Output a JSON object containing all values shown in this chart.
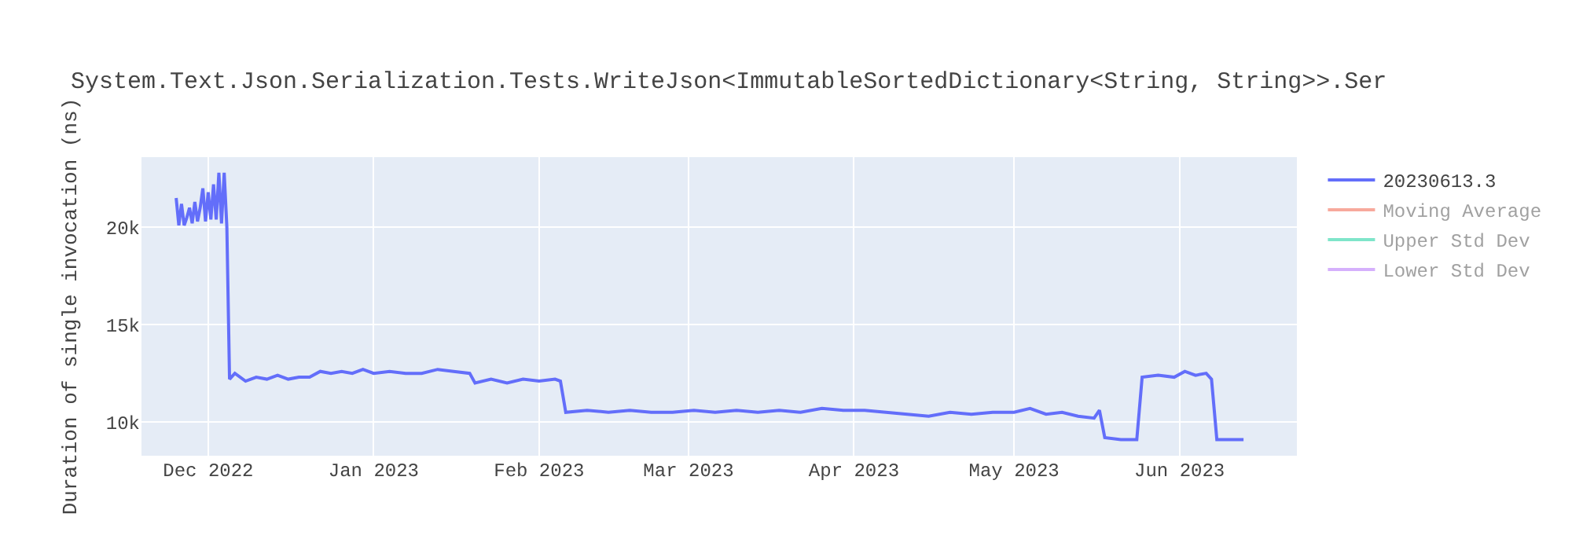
{
  "chart_data": {
    "type": "line",
    "title": "System.Text.Json.Serialization.Tests.WriteJson<ImmutableSortedDictionary<String, String>>.Ser",
    "ylabel": "Duration of single invocation (ns)",
    "x": [
      "2022-11-25",
      "2022-11-25T12:00",
      "2022-11-26",
      "2022-11-26T12:00",
      "2022-11-27",
      "2022-11-27T12:00",
      "2022-11-28",
      "2022-11-28T12:00",
      "2022-11-29",
      "2022-11-29T12:00",
      "2022-11-30",
      "2022-11-30T12:00",
      "2022-12-01",
      "2022-12-01T12:00",
      "2022-12-02",
      "2022-12-02T12:00",
      "2022-12-03",
      "2022-12-03T12:00",
      "2022-12-04",
      "2022-12-04T12:00",
      "2022-12-05",
      "2022-12-06",
      "2022-12-08",
      "2022-12-10",
      "2022-12-12",
      "2022-12-14",
      "2022-12-16",
      "2022-12-18",
      "2022-12-20",
      "2022-12-22",
      "2022-12-24",
      "2022-12-26",
      "2022-12-28",
      "2022-12-30",
      "2023-01-01",
      "2023-01-04",
      "2023-01-07",
      "2023-01-10",
      "2023-01-13",
      "2023-01-16",
      "2023-01-19",
      "2023-01-20",
      "2023-01-23",
      "2023-01-26",
      "2023-01-29",
      "2023-02-01",
      "2023-02-04",
      "2023-02-05",
      "2023-02-06",
      "2023-02-10",
      "2023-02-14",
      "2023-02-18",
      "2023-02-22",
      "2023-02-26",
      "2023-03-02",
      "2023-03-06",
      "2023-03-10",
      "2023-03-14",
      "2023-03-18",
      "2023-03-22",
      "2023-03-26",
      "2023-03-30",
      "2023-04-03",
      "2023-04-07",
      "2023-04-11",
      "2023-04-15",
      "2023-04-19",
      "2023-04-23",
      "2023-04-27",
      "2023-05-01",
      "2023-05-04",
      "2023-05-07",
      "2023-05-10",
      "2023-05-13",
      "2023-05-16",
      "2023-05-17",
      "2023-05-18",
      "2023-05-21",
      "2023-05-24",
      "2023-05-25",
      "2023-05-28",
      "2023-05-31",
      "2023-06-02",
      "2023-06-04",
      "2023-06-06",
      "2023-06-07",
      "2023-06-08",
      "2023-06-10",
      "2023-06-13"
    ],
    "series": [
      {
        "name": "20230613.3",
        "color": "#636efa",
        "values": [
          21500,
          20100,
          21200,
          20100,
          20500,
          21000,
          20200,
          21300,
          20300,
          21000,
          22000,
          20300,
          21800,
          20400,
          22200,
          20400,
          22800,
          20200,
          22800,
          20000,
          12200,
          12500,
          12100,
          12300,
          12200,
          12400,
          12200,
          12300,
          12300,
          12600,
          12500,
          12600,
          12500,
          12700,
          12500,
          12600,
          12500,
          12500,
          12700,
          12600,
          12500,
          12000,
          12200,
          12000,
          12200,
          12100,
          12200,
          12100,
          10500,
          10600,
          10500,
          10600,
          10500,
          10500,
          10600,
          10500,
          10600,
          10500,
          10600,
          10500,
          10700,
          10600,
          10600,
          10500,
          10400,
          10300,
          10500,
          10400,
          10500,
          10500,
          10700,
          10400,
          10500,
          10300,
          10200,
          10600,
          9200,
          9100,
          9100,
          12300,
          12400,
          12300,
          12600,
          12400,
          12500,
          12200,
          9100,
          9100,
          9100
        ]
      },
      {
        "name": "Moving Average",
        "color": "#ef553b",
        "values": [
          null,
          null,
          null,
          null,
          null,
          null,
          null,
          null,
          null,
          null,
          null,
          null,
          null,
          null,
          null,
          null,
          null,
          null,
          null,
          null,
          null,
          null,
          null,
          null,
          null,
          null,
          null,
          null,
          null,
          null,
          null,
          null,
          null,
          null,
          null,
          null,
          null,
          null,
          null,
          null,
          null,
          null,
          null,
          null,
          null,
          null,
          null,
          null,
          null,
          null,
          null,
          null,
          null,
          null,
          null,
          null,
          null,
          null,
          null,
          null,
          null,
          null,
          null,
          null,
          null,
          null,
          null,
          null,
          null,
          null,
          null,
          null,
          null,
          null,
          null,
          null,
          null,
          null,
          null,
          null,
          null,
          null,
          null,
          null,
          null,
          null,
          null,
          null,
          null
        ]
      },
      {
        "name": "Upper Std Dev",
        "color": "#00cc96",
        "values": [
          null,
          null,
          null,
          null,
          null,
          null,
          null,
          null,
          null,
          null,
          null,
          null,
          null,
          null,
          null,
          null,
          null,
          null,
          null,
          null,
          null,
          null,
          null,
          null,
          null,
          null,
          null,
          null,
          null,
          null,
          null,
          null,
          null,
          null,
          null,
          null,
          null,
          null,
          null,
          null,
          null,
          null,
          null,
          null,
          null,
          null,
          null,
          null,
          null,
          null,
          null,
          null,
          null,
          null,
          null,
          null,
          null,
          null,
          null,
          null,
          null,
          null,
          null,
          null,
          null,
          null,
          null,
          null,
          null,
          null,
          null,
          null,
          null,
          null,
          null,
          null,
          null,
          null,
          null,
          null,
          null,
          null,
          null,
          null,
          null,
          null,
          null,
          null,
          null
        ]
      },
      {
        "name": "Lower Std Dev",
        "color": "#ab63fa",
        "values": [
          null,
          null,
          null,
          null,
          null,
          null,
          null,
          null,
          null,
          null,
          null,
          null,
          null,
          null,
          null,
          null,
          null,
          null,
          null,
          null,
          null,
          null,
          null,
          null,
          null,
          null,
          null,
          null,
          null,
          null,
          null,
          null,
          null,
          null,
          null,
          null,
          null,
          null,
          null,
          null,
          null,
          null,
          null,
          null,
          null,
          null,
          null,
          null,
          null,
          null,
          null,
          null,
          null,
          null,
          null,
          null,
          null,
          null,
          null,
          null,
          null,
          null,
          null,
          null,
          null,
          null,
          null,
          null,
          null,
          null,
          null,
          null,
          null,
          null,
          null,
          null,
          null,
          null,
          null,
          null,
          null,
          null,
          null,
          null,
          null,
          null,
          null,
          null,
          null
        ]
      }
    ],
    "xlim": [
      "2022-11-18T12:00",
      "2023-06-23"
    ],
    "xticks": [
      {
        "value": "2022-12-01",
        "label": "Dec 2022"
      },
      {
        "value": "2023-01-01",
        "label": "Jan 2023"
      },
      {
        "value": "2023-02-01",
        "label": "Feb 2023"
      },
      {
        "value": "2023-03-01",
        "label": "Mar 2023"
      },
      {
        "value": "2023-04-01",
        "label": "Apr 2023"
      },
      {
        "value": "2023-05-01",
        "label": "May 2023"
      },
      {
        "value": "2023-06-01",
        "label": "Jun 2023"
      }
    ],
    "ylim": [
      8270,
      23600
    ],
    "yticks": [
      {
        "value": 10000,
        "label": "10k"
      },
      {
        "value": 15000,
        "label": "15k"
      },
      {
        "value": 20000,
        "label": "20k"
      }
    ],
    "grid": true,
    "legend": "top right",
    "line_style": "solid",
    "marker": "none"
  }
}
